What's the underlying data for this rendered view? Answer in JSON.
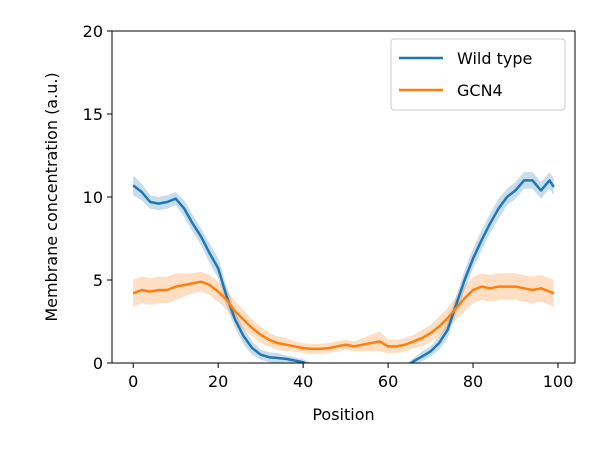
{
  "chart_data": {
    "type": "line",
    "title": "",
    "xlabel": "Position",
    "ylabel": "Membrane concentration (a.u.)",
    "xlim": [
      -5,
      104
    ],
    "ylim": [
      0,
      20
    ],
    "xticks": [
      0,
      20,
      40,
      60,
      80,
      100
    ],
    "yticks": [
      0,
      5,
      10,
      15,
      20
    ],
    "grid": false,
    "legend_position": "top-right",
    "series": [
      {
        "name": "Wild type",
        "color": "#1f77b4",
        "x": [
          0,
          2,
          4,
          6,
          8,
          10,
          12,
          14,
          16,
          18,
          20,
          22,
          24,
          26,
          28,
          30,
          32,
          34,
          36,
          38,
          40,
          42,
          44,
          46,
          48,
          50,
          52,
          54,
          56,
          58,
          60,
          62,
          64,
          66,
          68,
          70,
          72,
          74,
          76,
          78,
          80,
          82,
          84,
          86,
          88,
          90,
          92,
          94,
          96,
          98,
          99
        ],
        "y": [
          10.7,
          10.3,
          9.7,
          9.6,
          9.7,
          9.9,
          9.3,
          8.4,
          7.6,
          6.6,
          5.7,
          4.0,
          2.6,
          1.6,
          0.9,
          0.5,
          0.35,
          0.3,
          0.25,
          0.15,
          0.05,
          -0.2,
          -0.3,
          -0.3,
          -0.3,
          -0.3,
          -0.3,
          -0.3,
          -0.3,
          -0.3,
          -0.3,
          -0.3,
          -0.3,
          0.1,
          0.4,
          0.7,
          1.2,
          2.0,
          3.5,
          5.0,
          6.3,
          7.4,
          8.4,
          9.3,
          10.0,
          10.4,
          11.0,
          11.0,
          10.4,
          11.0,
          10.6
        ],
        "band": [
          0.6,
          0.5,
          0.4,
          0.4,
          0.4,
          0.4,
          0.5,
          0.5,
          0.5,
          0.6,
          0.6,
          0.6,
          0.5,
          0.5,
          0.4,
          0.3,
          0.3,
          0.3,
          0.2,
          0.2,
          0.2,
          0.2,
          0.2,
          0.2,
          0.2,
          0.2,
          0.2,
          0.2,
          0.2,
          0.2,
          0.2,
          0.2,
          0.2,
          0.2,
          0.3,
          0.3,
          0.4,
          0.5,
          0.5,
          0.6,
          0.6,
          0.6,
          0.6,
          0.6,
          0.5,
          0.5,
          0.5,
          0.5,
          0.5,
          0.5,
          0.5
        ]
      },
      {
        "name": "GCN4",
        "color": "#ff7f0e",
        "x": [
          0,
          2,
          4,
          6,
          8,
          10,
          12,
          14,
          16,
          18,
          20,
          22,
          24,
          26,
          28,
          30,
          32,
          34,
          36,
          38,
          40,
          42,
          44,
          46,
          48,
          50,
          52,
          54,
          56,
          58,
          60,
          62,
          64,
          66,
          68,
          70,
          72,
          74,
          76,
          78,
          80,
          82,
          84,
          86,
          88,
          90,
          92,
          94,
          96,
          98,
          99
        ],
        "y": [
          4.2,
          4.4,
          4.3,
          4.4,
          4.4,
          4.6,
          4.7,
          4.8,
          4.9,
          4.7,
          4.3,
          3.8,
          3.1,
          2.6,
          2.1,
          1.7,
          1.4,
          1.2,
          1.1,
          1.0,
          0.9,
          0.85,
          0.85,
          0.9,
          1.0,
          1.1,
          1.0,
          1.1,
          1.2,
          1.3,
          1.0,
          1.0,
          1.1,
          1.3,
          1.5,
          1.8,
          2.2,
          2.7,
          3.3,
          3.9,
          4.4,
          4.6,
          4.5,
          4.6,
          4.6,
          4.6,
          4.5,
          4.4,
          4.5,
          4.3,
          4.2
        ],
        "band": [
          0.8,
          0.8,
          0.8,
          0.8,
          0.8,
          0.8,
          0.7,
          0.6,
          0.6,
          0.6,
          0.6,
          0.6,
          0.6,
          0.6,
          0.5,
          0.5,
          0.4,
          0.4,
          0.4,
          0.3,
          0.3,
          0.3,
          0.3,
          0.3,
          0.3,
          0.3,
          0.3,
          0.4,
          0.5,
          0.6,
          0.4,
          0.4,
          0.4,
          0.4,
          0.5,
          0.5,
          0.6,
          0.6,
          0.7,
          0.8,
          0.8,
          0.8,
          0.8,
          0.8,
          0.8,
          0.8,
          0.8,
          0.8,
          0.8,
          0.8,
          0.8
        ]
      }
    ]
  }
}
